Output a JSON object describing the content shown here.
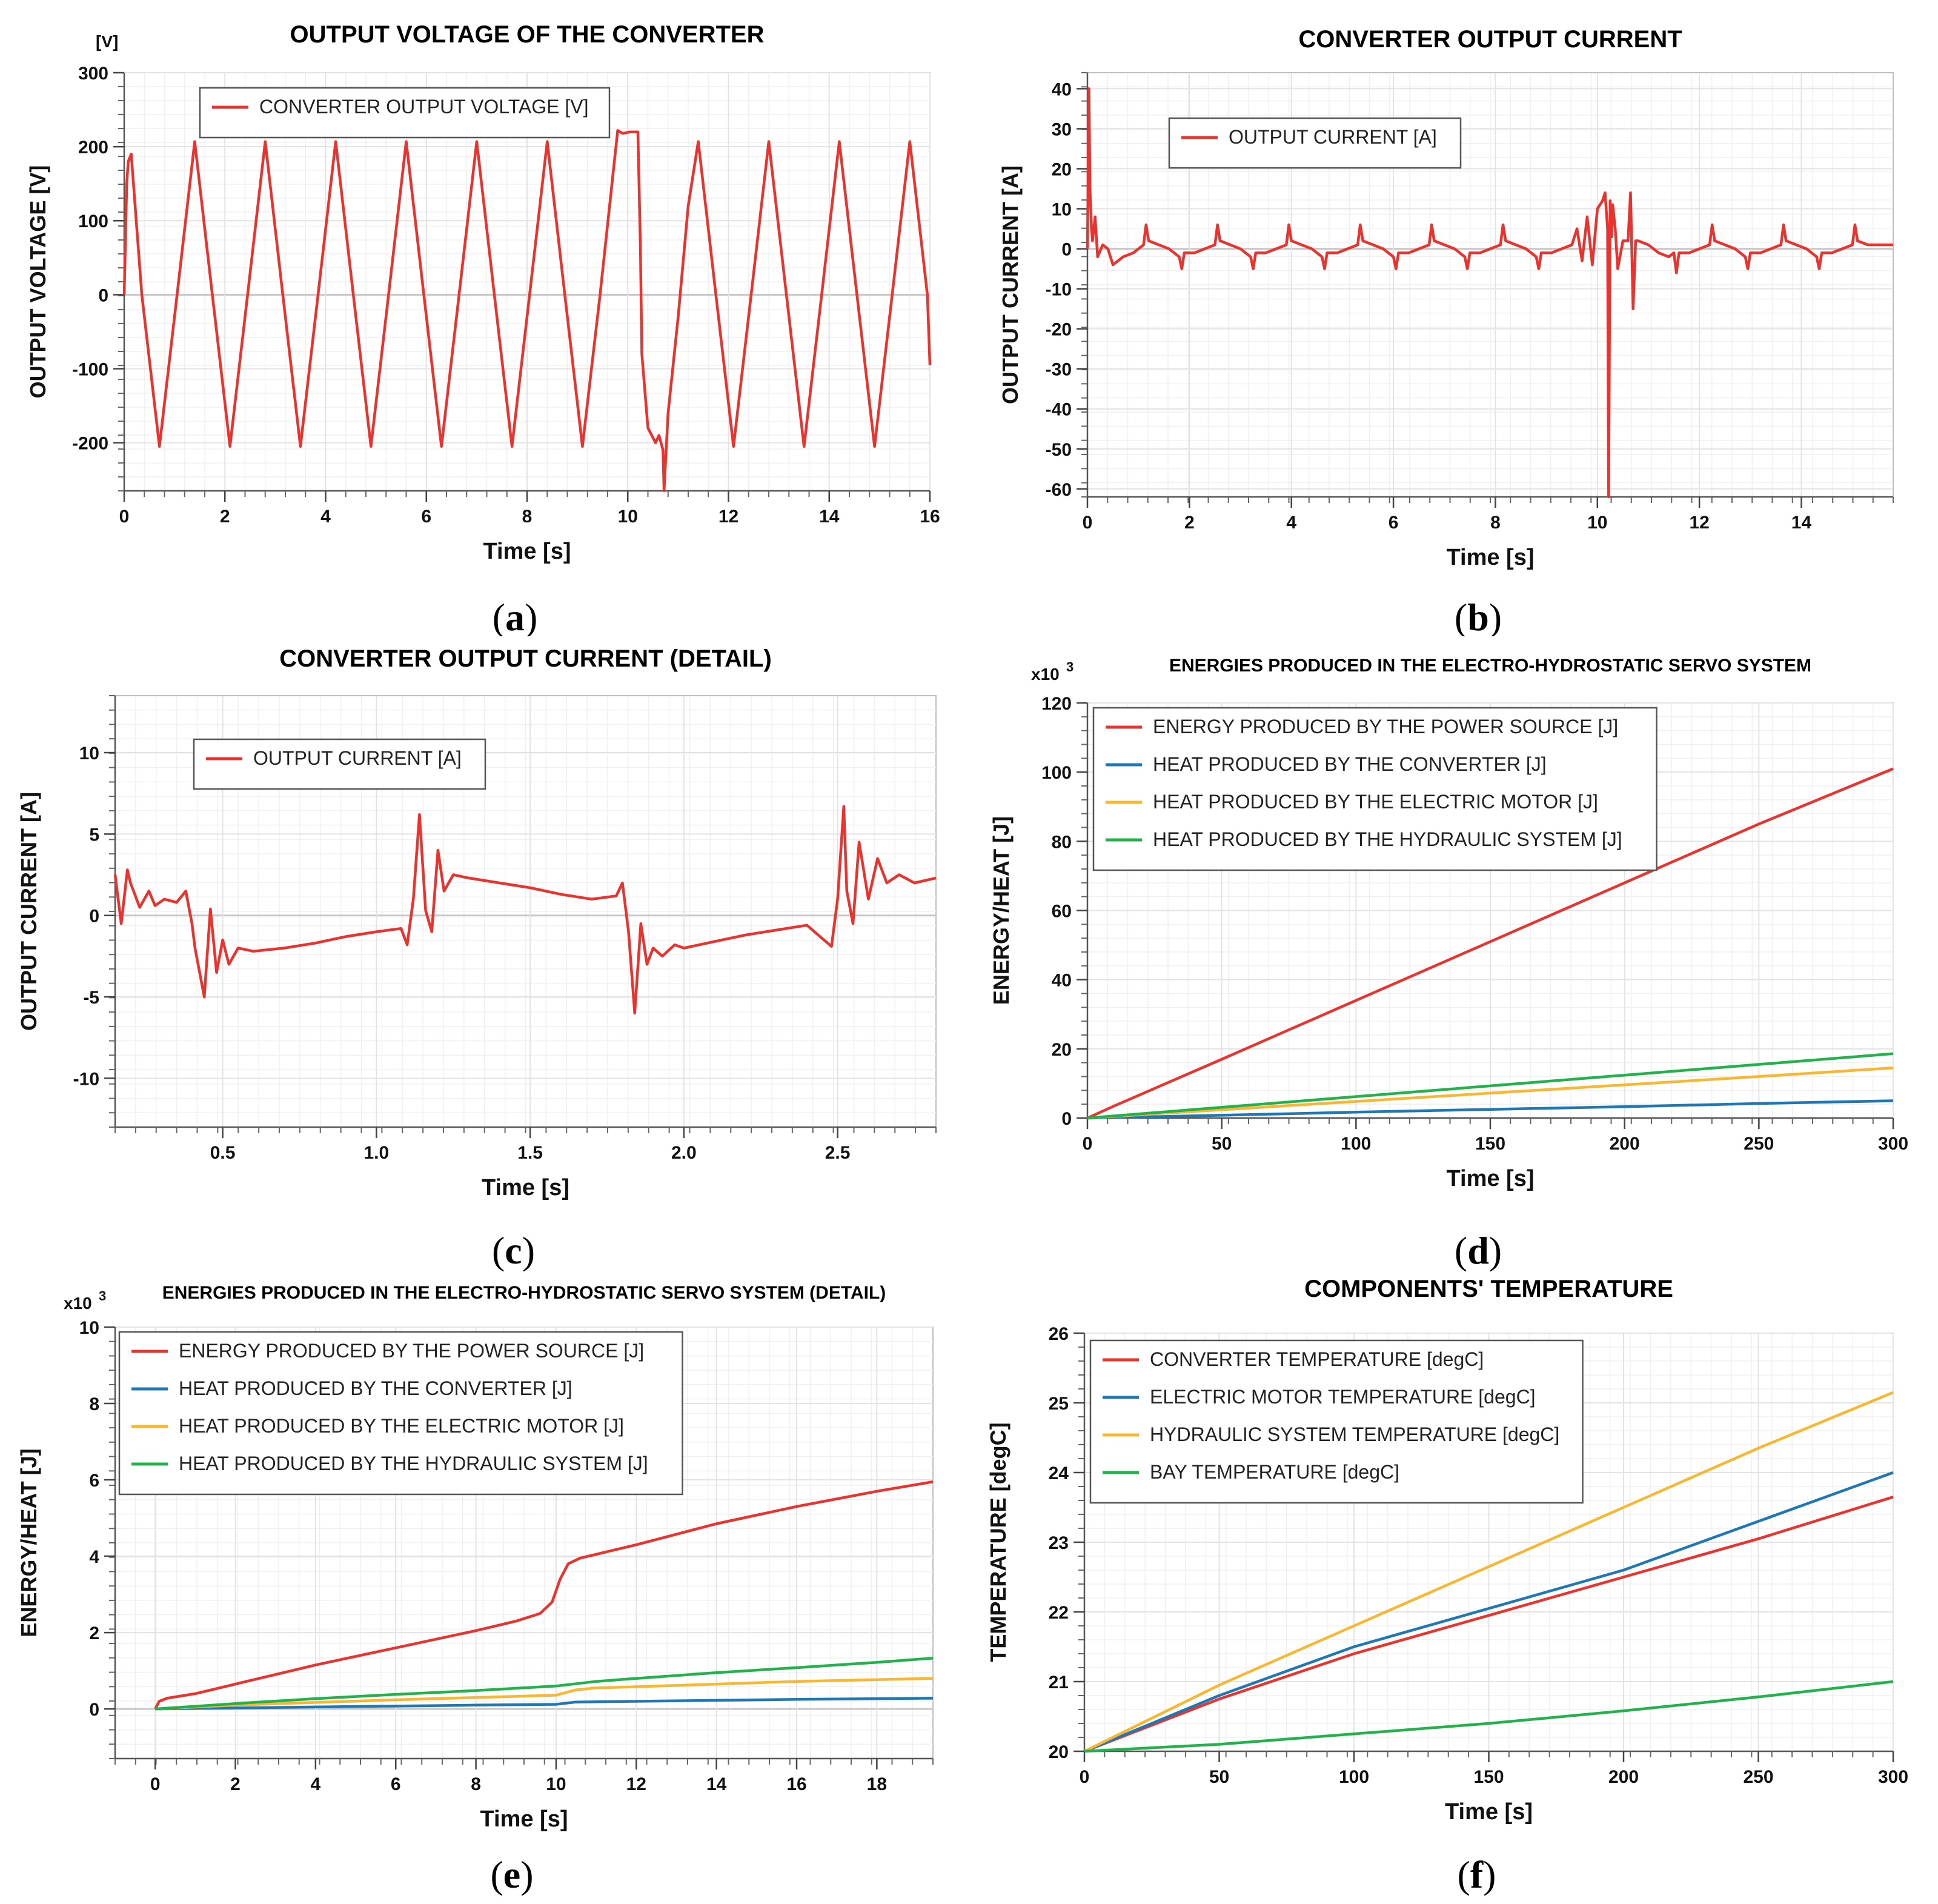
{
  "chart_data": [
    {
      "id": "a",
      "type": "line",
      "caption": "a",
      "title": "OUTPUT VOLTAGE OF THE CONVERTER",
      "xlabel": "Time [s]",
      "ylabel": "OUTPUT VOLTAGE [V]",
      "unit_label": "[V]",
      "xlim": [
        0,
        16
      ],
      "ylim": [
        -265,
        300
      ],
      "xticks": [
        0,
        2,
        4,
        6,
        8,
        10,
        12,
        14,
        16
      ],
      "yticks": [
        -200,
        -100,
        0,
        100,
        200,
        300
      ],
      "grid": true,
      "legend_position": "top-left",
      "series": [
        {
          "name": "CONVERTER OUTPUT VOLTAGE [V]",
          "color": "#e8332f",
          "x": [
            0,
            0.05,
            0.08,
            0.14,
            0.35,
            0.7,
            1.05,
            1.4,
            1.75,
            2.1,
            2.45,
            2.8,
            3.15,
            3.5,
            3.85,
            4.2,
            4.55,
            4.9,
            5.25,
            5.6,
            5.95,
            6.3,
            6.65,
            7.0,
            7.35,
            7.7,
            8.05,
            8.4,
            8.75,
            9.1,
            9.45,
            9.8,
            9.9,
            10.05,
            10.2,
            10.25,
            10.28,
            10.4,
            10.55,
            10.62,
            10.7,
            10.72,
            10.8,
            11.0,
            11.2,
            11.4,
            11.75,
            12.1,
            12.45,
            12.8,
            13.15,
            13.5,
            13.85,
            14.2,
            14.55,
            14.9,
            15.25,
            15.6,
            15.95,
            16.0
          ],
          "y": [
            0,
            150,
            180,
            190,
            0,
            -205,
            0,
            207,
            0,
            -205,
            0,
            207,
            0,
            -205,
            0,
            207,
            0,
            -205,
            0,
            207,
            0,
            -205,
            0,
            207,
            0,
            -205,
            0,
            207,
            0,
            -205,
            0,
            222,
            218,
            220,
            220,
            70,
            -80,
            -180,
            -200,
            -190,
            -210,
            -265,
            -160,
            -30,
            120,
            207,
            0,
            -205,
            0,
            207,
            0,
            -205,
            0,
            207,
            0,
            -205,
            0,
            207,
            0,
            -95
          ]
        }
      ]
    },
    {
      "id": "b",
      "type": "line",
      "caption": "b",
      "title": "CONVERTER OUTPUT CURRENT",
      "xlabel": "Time [s]",
      "ylabel": "OUTPUT CURRENT [A]",
      "xlim": [
        0,
        15.8
      ],
      "ylim": [
        -62,
        44
      ],
      "xticks": [
        0,
        2,
        4,
        6,
        8,
        10,
        12,
        14
      ],
      "yticks": [
        -60,
        -50,
        -40,
        -30,
        -20,
        -10,
        0,
        10,
        20,
        30,
        40
      ],
      "grid": true,
      "legend_position": "top-left",
      "series": [
        {
          "name": "OUTPUT CURRENT [A]",
          "color": "#e8332f",
          "x": [
            0,
            0.03,
            0.05,
            0.08,
            0.1,
            0.15,
            0.2,
            0.3,
            0.4,
            0.5,
            0.7,
            0.9,
            1.1,
            1.15,
            1.2,
            1.4,
            1.6,
            1.8,
            1.85,
            1.9,
            2.1,
            2.3,
            2.5,
            2.55,
            2.6,
            2.8,
            3.0,
            3.2,
            3.25,
            3.3,
            3.5,
            3.7,
            3.9,
            3.95,
            4.0,
            4.2,
            4.4,
            4.6,
            4.65,
            4.7,
            4.9,
            5.1,
            5.3,
            5.35,
            5.4,
            5.6,
            5.8,
            6.0,
            6.05,
            6.1,
            6.3,
            6.5,
            6.7,
            6.75,
            6.8,
            7.0,
            7.2,
            7.4,
            7.45,
            7.5,
            7.7,
            7.9,
            8.1,
            8.15,
            8.2,
            8.4,
            8.6,
            8.8,
            8.85,
            8.9,
            9.1,
            9.3,
            9.5,
            9.6,
            9.7,
            9.8,
            9.9,
            10.0,
            10.1,
            10.15,
            10.2,
            10.22,
            10.25,
            10.28,
            10.3,
            10.35,
            10.4,
            10.5,
            10.6,
            10.65,
            10.7,
            10.75,
            10.8,
            11.0,
            11.2,
            11.4,
            11.5,
            11.55,
            11.6,
            11.8,
            12.0,
            12.2,
            12.25,
            12.3,
            12.5,
            12.7,
            12.9,
            12.95,
            13.0,
            13.2,
            13.4,
            13.6,
            13.65,
            13.7,
            13.9,
            14.1,
            14.3,
            14.35,
            14.4,
            14.6,
            14.8,
            15.0,
            15.05,
            15.1,
            15.3,
            15.5,
            15.8
          ],
          "y": [
            0,
            40,
            15,
            5,
            2,
            8,
            -2,
            1,
            0,
            -4,
            -2,
            -1,
            1,
            6,
            2,
            1,
            0,
            -2,
            -5,
            -1,
            -1,
            0,
            1,
            6,
            2,
            1,
            0,
            -2,
            -5,
            -1,
            -1,
            0,
            1,
            6,
            2,
            1,
            0,
            -2,
            -5,
            -1,
            -1,
            0,
            1,
            6,
            2,
            1,
            0,
            -2,
            -5,
            -1,
            -1,
            0,
            1,
            6,
            2,
            1,
            0,
            -2,
            -5,
            -1,
            -1,
            0,
            1,
            6,
            2,
            1,
            0,
            -2,
            -5,
            -1,
            -1,
            0,
            1,
            5,
            -3,
            8,
            -4,
            10,
            12,
            14,
            5,
            -62,
            12,
            3,
            11,
            5,
            -5,
            2,
            2,
            14,
            -15,
            2,
            2,
            1,
            -1,
            -2,
            -1,
            -6,
            -1,
            -1,
            0,
            1,
            6,
            2,
            1,
            0,
            -2,
            -5,
            -1,
            -1,
            0,
            1,
            6,
            2,
            1,
            0,
            -2,
            -5,
            -1,
            -1,
            0,
            1,
            6,
            2,
            1,
            1,
            1
          ]
        }
      ]
    },
    {
      "id": "c",
      "type": "line",
      "caption": "c",
      "title": "CONVERTER OUTPUT CURRENT (DETAIL)",
      "xlabel": "Time [s]",
      "ylabel": "OUTPUT CURRENT [A]",
      "xlim": [
        0.15,
        2.82
      ],
      "ylim": [
        -13,
        13.5
      ],
      "xticks": [
        0.5,
        1.0,
        1.5,
        2.0,
        2.5
      ],
      "xticklabels": [
        "0.5",
        "1.0",
        "1.5",
        "2.0",
        "2.5"
      ],
      "yticks": [
        -10,
        -5,
        0,
        5,
        10
      ],
      "grid": true,
      "legend_position": "top-left",
      "series": [
        {
          "name": "OUTPUT CURRENT [A]",
          "color": "#e8332f",
          "x": [
            0.15,
            0.17,
            0.19,
            0.2,
            0.23,
            0.26,
            0.28,
            0.31,
            0.35,
            0.38,
            0.4,
            0.41,
            0.42,
            0.44,
            0.46,
            0.48,
            0.5,
            0.52,
            0.55,
            0.6,
            0.7,
            0.8,
            0.9,
            1.0,
            1.08,
            1.1,
            1.12,
            1.14,
            1.16,
            1.18,
            1.2,
            1.22,
            1.25,
            1.3,
            1.4,
            1.5,
            1.6,
            1.7,
            1.78,
            1.8,
            1.82,
            1.84,
            1.86,
            1.88,
            1.9,
            1.93,
            1.97,
            2.0,
            2.1,
            2.2,
            2.3,
            2.4,
            2.48,
            2.5,
            2.52,
            2.53,
            2.55,
            2.57,
            2.6,
            2.63,
            2.66,
            2.7,
            2.75,
            2.82
          ],
          "y": [
            2.5,
            -0.5,
            2.8,
            2.0,
            0.5,
            1.5,
            0.6,
            1.0,
            0.8,
            1.5,
            -0.5,
            -2.0,
            -3.0,
            -5.0,
            0.4,
            -3.5,
            -1.5,
            -3.0,
            -2.0,
            -2.2,
            -2.0,
            -1.7,
            -1.3,
            -1.0,
            -0.8,
            -1.8,
            1.0,
            6.2,
            0.3,
            -1.0,
            4.0,
            1.5,
            2.5,
            2.3,
            2.0,
            1.7,
            1.3,
            1.0,
            1.2,
            2.0,
            -1.0,
            -6.0,
            -0.5,
            -3.0,
            -2.0,
            -2.5,
            -1.8,
            -2.0,
            -1.6,
            -1.2,
            -0.9,
            -0.6,
            -1.9,
            1.0,
            6.7,
            1.5,
            -0.5,
            4.5,
            1.0,
            3.5,
            2.0,
            2.5,
            2.0,
            2.3
          ]
        }
      ]
    },
    {
      "id": "d",
      "type": "line",
      "caption": "d",
      "title": "ENERGIES PRODUCED IN THE ELECTRO-HYDROSTATIC SERVO SYSTEM",
      "xlabel": "Time [s]",
      "ylabel": "ENERGY/HEAT [J]",
      "multiplier_label": "x10",
      "multiplier_exp": "3",
      "xlim": [
        0,
        300
      ],
      "ylim": [
        0,
        120
      ],
      "xticks": [
        0,
        50,
        100,
        150,
        200,
        250,
        300
      ],
      "yticks": [
        0,
        20,
        40,
        60,
        80,
        100,
        120
      ],
      "grid": true,
      "legend_position": "top-left",
      "series": [
        {
          "name": "ENERGY PRODUCED BY THE POWER SOURCE [J]",
          "color": "#e8332f",
          "x": [
            0,
            10,
            50,
            100,
            150,
            200,
            250,
            300
          ],
          "y": [
            0,
            3.5,
            17,
            34,
            51,
            68,
            85,
            101
          ]
        },
        {
          "name": "HEAT PRODUCED BY THE CONVERTER [J]",
          "color": "#1f77b4",
          "x": [
            0,
            50,
            100,
            150,
            200,
            250,
            300
          ],
          "y": [
            0,
            0.8,
            1.7,
            2.5,
            3.3,
            4.2,
            5.0
          ]
        },
        {
          "name": "HEAT PRODUCED BY THE ELECTRIC MOTOR [J]",
          "color": "#f7b731",
          "x": [
            0,
            50,
            100,
            150,
            200,
            250,
            300
          ],
          "y": [
            0,
            2.4,
            4.8,
            7.2,
            9.6,
            12.0,
            14.5
          ]
        },
        {
          "name": "HEAT PRODUCED BY THE HYDRAULIC SYSTEM [J]",
          "color": "#22b14c",
          "x": [
            0,
            50,
            100,
            150,
            200,
            250,
            300
          ],
          "y": [
            0,
            3.1,
            6.2,
            9.3,
            12.4,
            15.5,
            18.6
          ]
        }
      ]
    },
    {
      "id": "e",
      "type": "line",
      "caption": "e",
      "title": "ENERGIES PRODUCED IN THE ELECTRO-HYDROSTATIC SERVO SYSTEM (DETAIL)",
      "xlabel": "Time [s]",
      "ylabel": "ENERGY/HEAT [J]",
      "multiplier_label": "x10",
      "multiplier_exp": "3",
      "xlim": [
        -1,
        19.4
      ],
      "ylim": [
        -1.3,
        10
      ],
      "xticks": [
        0,
        2,
        4,
        6,
        8,
        10,
        12,
        14,
        16,
        18
      ],
      "yticks": [
        0,
        2,
        4,
        6,
        8,
        10
      ],
      "grid": true,
      "legend_position": "top-left",
      "series": [
        {
          "name": "ENERGY PRODUCED BY THE POWER SOURCE [J]",
          "color": "#e8332f",
          "x": [
            0,
            0.1,
            0.3,
            1,
            2,
            4,
            6,
            8,
            9,
            9.6,
            9.9,
            10.1,
            10.3,
            10.6,
            11,
            12,
            14,
            16,
            18,
            19.4
          ],
          "y": [
            0,
            0.2,
            0.28,
            0.4,
            0.65,
            1.15,
            1.6,
            2.05,
            2.3,
            2.5,
            2.8,
            3.4,
            3.8,
            3.95,
            4.05,
            4.3,
            4.85,
            5.3,
            5.7,
            5.95
          ]
        },
        {
          "name": "HEAT PRODUCED BY THE CONVERTER [J]",
          "color": "#1f77b4",
          "x": [
            0,
            4,
            8,
            10,
            10.5,
            12,
            16,
            19.4
          ],
          "y": [
            0,
            0.05,
            0.1,
            0.12,
            0.18,
            0.2,
            0.25,
            0.28
          ]
        },
        {
          "name": "HEAT PRODUCED BY THE ELECTRIC MOTOR [J]",
          "color": "#f7b731",
          "x": [
            0,
            2,
            4,
            6,
            8,
            10,
            10.5,
            11,
            12,
            14,
            16,
            19.4
          ],
          "y": [
            0,
            0.1,
            0.17,
            0.24,
            0.3,
            0.36,
            0.5,
            0.55,
            0.58,
            0.65,
            0.72,
            0.8
          ]
        },
        {
          "name": "HEAT PRODUCED BY THE HYDRAULIC SYSTEM [J]",
          "color": "#22b14c",
          "x": [
            0,
            2,
            4,
            6,
            8,
            10,
            11,
            12,
            14,
            16,
            18,
            19.4
          ],
          "y": [
            0,
            0.14,
            0.27,
            0.38,
            0.48,
            0.6,
            0.72,
            0.8,
            0.95,
            1.08,
            1.22,
            1.33
          ]
        }
      ]
    },
    {
      "id": "f",
      "type": "line",
      "caption": "f",
      "title": "COMPONENTS' TEMPERATURE",
      "xlabel": "Time [s]",
      "ylabel": "TEMPERATURE [degC]",
      "xlim": [
        0,
        300
      ],
      "ylim": [
        20,
        26
      ],
      "xticks": [
        0,
        50,
        100,
        150,
        200,
        250,
        300
      ],
      "yticks": [
        20,
        21,
        22,
        23,
        24,
        25,
        26
      ],
      "grid": true,
      "legend_position": "top-left",
      "series": [
        {
          "name": "CONVERTER TEMPERATURE [degC]",
          "color": "#e8332f",
          "x": [
            0,
            50,
            100,
            150,
            200,
            250,
            300
          ],
          "y": [
            20,
            20.75,
            21.4,
            21.95,
            22.5,
            23.05,
            23.65
          ]
        },
        {
          "name": "ELECTRIC MOTOR TEMPERATURE [degC]",
          "color": "#1f77b4",
          "x": [
            0,
            50,
            100,
            150,
            200,
            250,
            300
          ],
          "y": [
            20,
            20.8,
            21.5,
            22.05,
            22.6,
            23.3,
            24.0
          ]
        },
        {
          "name": "HYDRAULIC SYSTEM TEMPERATURE [degC]",
          "color": "#f7b731",
          "x": [
            0,
            50,
            100,
            150,
            200,
            250,
            300
          ],
          "y": [
            20,
            20.95,
            21.8,
            22.65,
            23.5,
            24.35,
            25.15
          ]
        },
        {
          "name": "BAY TEMPERATURE [degC]",
          "color": "#22b14c",
          "x": [
            0,
            50,
            100,
            150,
            200,
            250,
            300
          ],
          "y": [
            20,
            20.1,
            20.25,
            20.4,
            20.58,
            20.78,
            21.0
          ]
        }
      ]
    }
  ]
}
